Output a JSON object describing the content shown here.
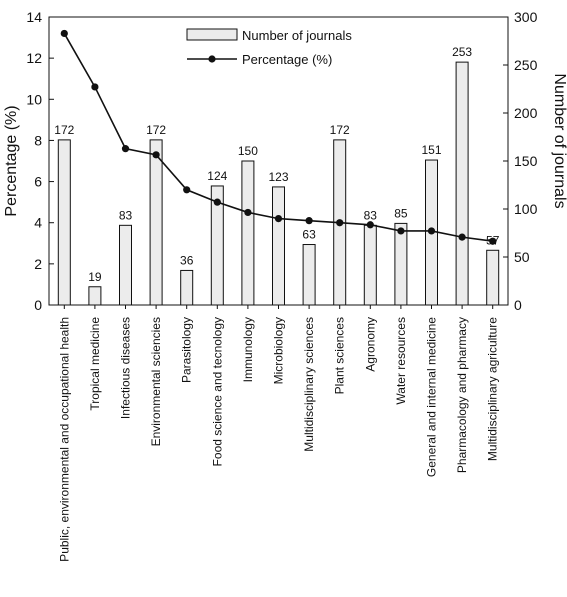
{
  "chart_data": {
    "type": "bar",
    "categories": [
      "Public, environmental and occupational health",
      "Tropical medicine",
      "Infectious diseases",
      "Environmental sciencies",
      "Parasitology",
      "Food science and tecnology",
      "Immunology",
      "Microbiology",
      "Multidisciplinary sciences",
      "Plant sciences",
      "Agronomy",
      "Water resources",
      "General and internal medicine",
      "Pharmacology and pharmacy",
      "Multidisciplinary agriculture"
    ],
    "series": [
      {
        "name": "Number of journals",
        "type": "bar",
        "axis": "right",
        "values": [
          172,
          19,
          83,
          172,
          36,
          124,
          150,
          123,
          63,
          172,
          83,
          85,
          151,
          253,
          57
        ],
        "labels": [
          "172",
          "19",
          "83",
          "172",
          "36",
          "124",
          "150",
          "123",
          "63",
          "172",
          "83",
          "85",
          "151",
          "253",
          "57"
        ]
      },
      {
        "name": "Percentage (%)",
        "type": "line",
        "axis": "left",
        "values": [
          13.2,
          10.6,
          7.6,
          7.3,
          5.6,
          5.0,
          4.5,
          4.2,
          4.1,
          4.0,
          3.9,
          3.6,
          3.6,
          3.3,
          3.1
        ]
      }
    ],
    "ylabel": "Percentage (%)",
    "y2label": "Number of journals",
    "ylim": [
      0,
      14
    ],
    "y2lim": [
      0,
      300
    ],
    "yticks": [
      "0",
      "2",
      "4",
      "6",
      "8",
      "10",
      "12",
      "14"
    ],
    "y2ticks": [
      "0",
      "50",
      "100",
      "150",
      "200",
      "250",
      "300"
    ],
    "legend_position": "top-center",
    "grid": false,
    "colors": {
      "bar_fill": "#ececec",
      "bar_stroke": "#111111",
      "line": "#111111"
    }
  }
}
